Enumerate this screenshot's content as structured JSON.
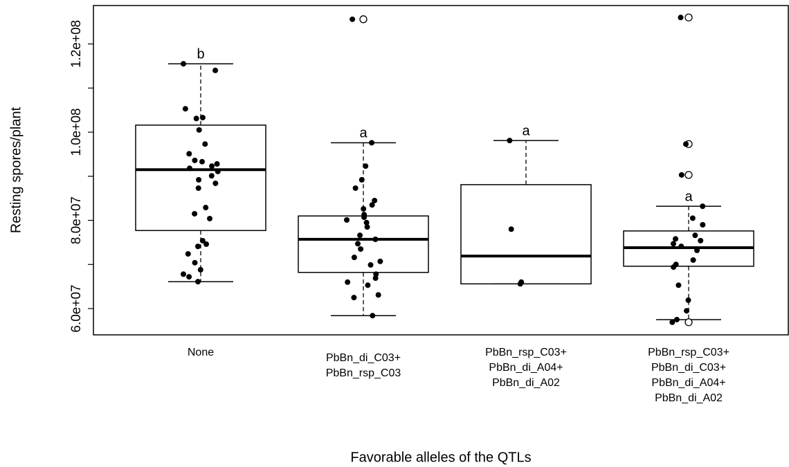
{
  "chart_data": {
    "type": "box",
    "ylabel": "Resting spores/plant",
    "xlabel": "Favorable alleles of the QTLs",
    "categories": [
      [
        "None"
      ],
      [
        "PbBn_di_C03+",
        "PbBn_rsp_C03"
      ],
      [
        "PbBn_rsp_C03+",
        "PbBn_di_A04+",
        "PbBn_di_A02"
      ],
      [
        "PbBn_rsp_C03+",
        "PbBn_di_C03+",
        "PbBn_di_A04+",
        "PbBn_di_A02"
      ]
    ],
    "boxes": [
      {
        "whisker_low": 66100000.0,
        "q1": 77700000.0,
        "median": 91500000.0,
        "q3": 101600000.0,
        "whisker_high": 115500000.0,
        "outliers": [],
        "letter": "b"
      },
      {
        "whisker_low": 58400000.0,
        "q1": 68200000.0,
        "median": 75700000.0,
        "q3": 81000000.0,
        "whisker_high": 97600000.0,
        "outliers": [
          125600000.0
        ],
        "letter": "a"
      },
      {
        "whisker_low": 65600000.0,
        "q1": 65600000.0,
        "median": 71900000.0,
        "q3": 88100000.0,
        "whisker_high": 98100000.0,
        "outliers": [],
        "letter": "a"
      },
      {
        "whisker_low": 57500000.0,
        "q1": 69600000.0,
        "median": 73800000.0,
        "q3": 77600000.0,
        "whisker_high": 83200000.0,
        "outliers": [
          126000000.0,
          97300000.0,
          90300000.0,
          56900000.0
        ],
        "letter": "a"
      }
    ],
    "points": [
      [
        115500000.0,
        114000000.0,
        105300000.0,
        103300000.0,
        103100000.0,
        100500000.0,
        97300000.0,
        95100000.0,
        93600000.0,
        93300000.0,
        92800000.0,
        92300000.0,
        91800000.0,
        91100000.0,
        90100000.0,
        89200000.0,
        88400000.0,
        87300000.0,
        82900000.0,
        81500000.0,
        80400000.0,
        75400000.0,
        74600000.0,
        74100000.0,
        72400000.0,
        70400000.0,
        68800000.0,
        67800000.0,
        67200000.0,
        66100000.0
      ],
      [
        125600000.0,
        97600000.0,
        92300000.0,
        89200000.0,
        87300000.0,
        84500000.0,
        83500000.0,
        82600000.0,
        81300000.0,
        80700000.0,
        80100000.0,
        79500000.0,
        78500000.0,
        76600000.0,
        75700000.0,
        74700000.0,
        73500000.0,
        71600000.0,
        70700000.0,
        69900000.0,
        67800000.0,
        66900000.0,
        66000000.0,
        65300000.0,
        63100000.0,
        62500000.0,
        58400000.0
      ],
      [
        98100000.0,
        78000000.0,
        66000000.0,
        65600000.0
      ],
      [
        126000000.0,
        97300000.0,
        90300000.0,
        83200000.0,
        80500000.0,
        79000000.0,
        76600000.0,
        75800000.0,
        75400000.0,
        74700000.0,
        74100000.0,
        73200000.0,
        71000000.0,
        70000000.0,
        69400000.0,
        65300000.0,
        61900000.0,
        59500000.0,
        57500000.0,
        56900000.0
      ]
    ],
    "ylim": [
      54040000.0,
      128710000.0
    ],
    "yticks": [
      {
        "value": 60000000.0,
        "label": "6.0e+07"
      },
      {
        "value": 70000000.0,
        "label": null
      },
      {
        "value": 80000000.0,
        "label": "8.0e+07"
      },
      {
        "value": 90000000.0,
        "label": null
      },
      {
        "value": 100000000.0,
        "label": "1.0e+08"
      },
      {
        "value": 110000000.0,
        "label": null
      },
      {
        "value": 120000000.0,
        "label": "1.2e+08"
      }
    ]
  }
}
